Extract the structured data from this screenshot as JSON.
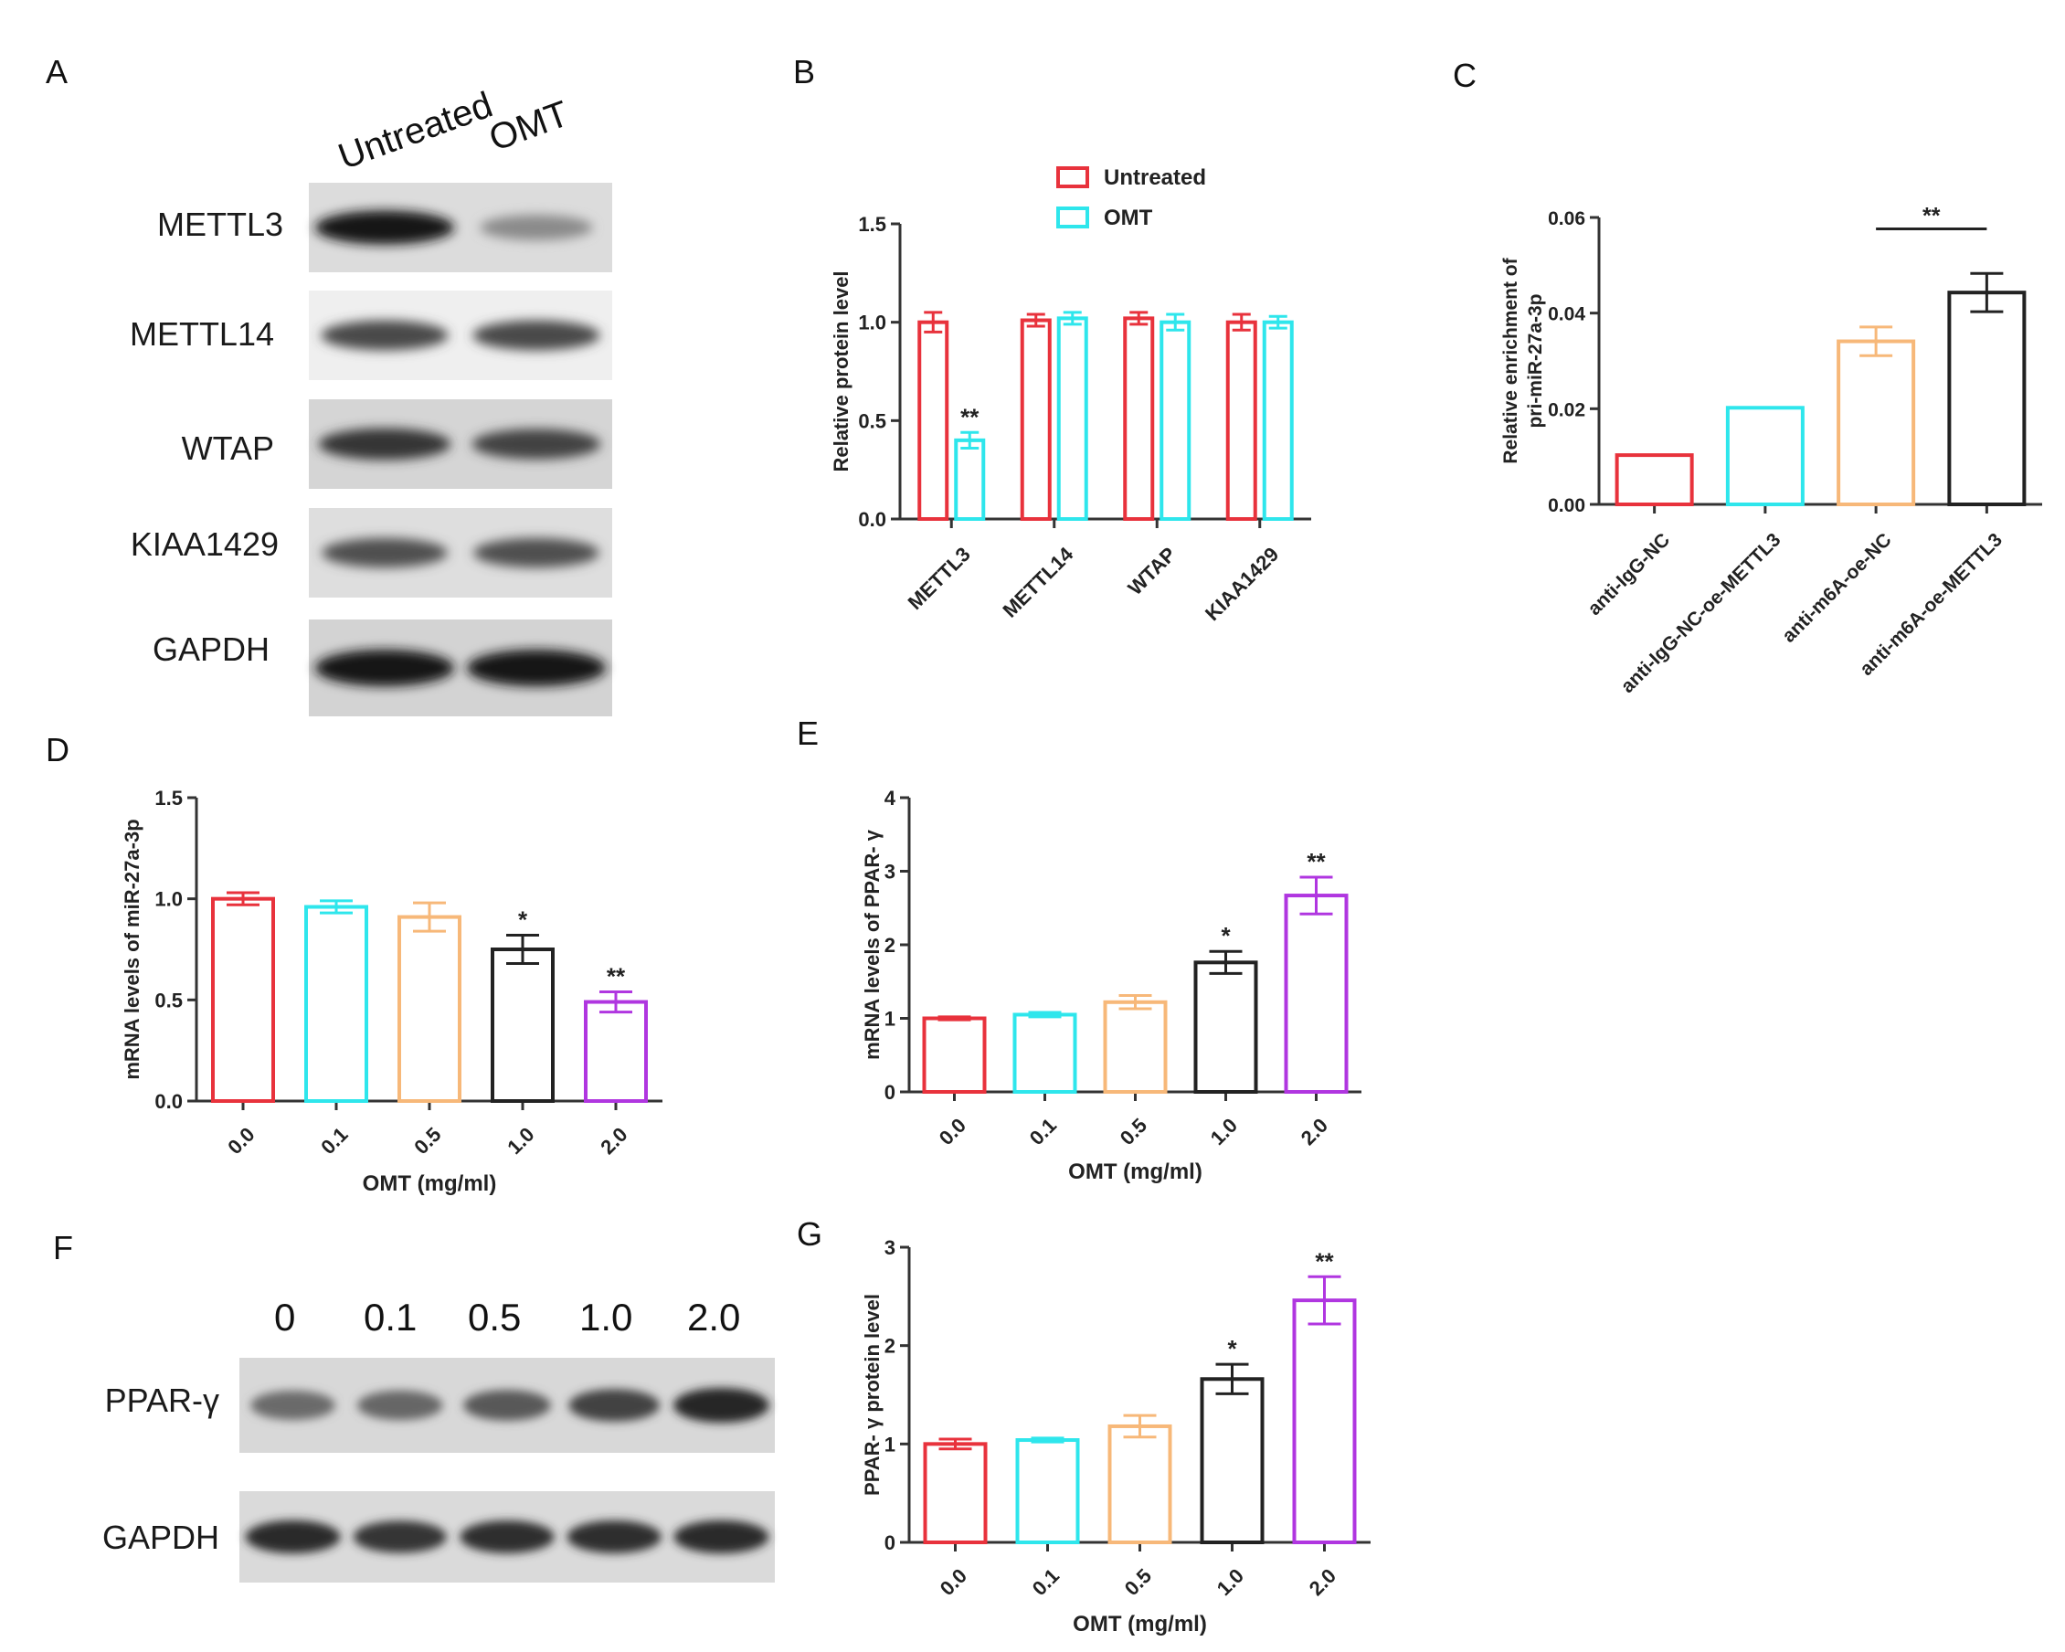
{
  "panels": [
    "A",
    "B",
    "C",
    "D",
    "E",
    "F",
    "G"
  ],
  "blot_a": {
    "lanes": [
      "Untreated",
      "OMT"
    ],
    "proteins": [
      "METTL3",
      "METTL14",
      "WTAP",
      "KIAA1429",
      "GAPDH"
    ],
    "intensity": [
      [
        1.0,
        0.45
      ],
      [
        0.75,
        0.75
      ],
      [
        0.85,
        0.78
      ],
      [
        0.72,
        0.72
      ],
      [
        1.0,
        1.0
      ]
    ]
  },
  "blot_f": {
    "lanes": [
      "0",
      "0.1",
      "0.5",
      "1.0",
      "2.0"
    ],
    "proteins": [
      "PPAR-γ",
      "GAPDH"
    ],
    "intensity": [
      [
        0.6,
        0.62,
        0.68,
        0.78,
        0.92
      ],
      [
        0.9,
        0.85,
        0.88,
        0.88,
        0.9
      ]
    ]
  },
  "colors": {
    "red": "#e8323c",
    "cyan": "#2ee6ec",
    "orange": "#f7b879",
    "black": "#222222",
    "purple": "#b036e0"
  },
  "chart_data": [
    {
      "panel": "B",
      "type": "bar",
      "categories": [
        "METTL3",
        "METTL14",
        "WTAP",
        "KIAA1429"
      ],
      "series": [
        {
          "name": "Untreated",
          "values": [
            1.0,
            1.01,
            1.02,
            1.0
          ],
          "errors": [
            0.05,
            0.03,
            0.03,
            0.04
          ],
          "color": "#e8323c"
        },
        {
          "name": "OMT",
          "values": [
            0.4,
            1.02,
            1.0,
            1.0
          ],
          "errors": [
            0.04,
            0.03,
            0.04,
            0.03
          ],
          "color": "#2ee6ec"
        }
      ],
      "annotations": [
        {
          "category": 0,
          "series": 1,
          "text": "**"
        }
      ],
      "ylabel": "Relative protein level",
      "ylim": [
        0,
        1.5
      ],
      "yticks": [
        "0.0",
        "0.5",
        "1.0",
        "1.5"
      ],
      "legend": "top",
      "grid": false
    },
    {
      "panel": "C",
      "type": "bar",
      "categories": [
        "anti-IgG-NC",
        "anti-IgG-NC-oe-METTL3",
        "anti-m6A-oe-NC",
        "anti-m6A-oe-METTL3"
      ],
      "values": [
        0.0103,
        0.0202,
        0.0341,
        0.0443
      ],
      "errors": [
        0,
        0,
        0.003,
        0.004
      ],
      "colors": [
        "#e8323c",
        "#2ee6ec",
        "#f7b879",
        "#222222"
      ],
      "annotations": [
        {
          "from": 2,
          "to": 3,
          "text": "**"
        }
      ],
      "ylabel": [
        "Relative enrichment of",
        "pri-miR-27a-3p"
      ],
      "ylim": [
        0,
        0.06
      ],
      "yticks": [
        "0.00",
        "0.02",
        "0.04",
        "0.06"
      ],
      "grid": false
    },
    {
      "panel": "D",
      "type": "bar",
      "categories": [
        "0.0",
        "0.1",
        "0.5",
        "1.0",
        "2.0"
      ],
      "values": [
        1.0,
        0.96,
        0.91,
        0.75,
        0.49
      ],
      "errors": [
        0.03,
        0.03,
        0.07,
        0.07,
        0.05
      ],
      "colors": [
        "#e8323c",
        "#2ee6ec",
        "#f7b879",
        "#222222",
        "#b036e0"
      ],
      "annotations": [
        {
          "category": 3,
          "text": "*"
        },
        {
          "category": 4,
          "text": "**"
        }
      ],
      "xlabel": "OMT (mg/ml)",
      "ylabel": "mRNA levels of miR-27a-3p",
      "ylim": [
        0,
        1.5
      ],
      "yticks": [
        "0.0",
        "0.5",
        "1.0",
        "1.5"
      ],
      "grid": false
    },
    {
      "panel": "E",
      "type": "bar",
      "categories": [
        "0.0",
        "0.1",
        "0.5",
        "1.0",
        "2.0"
      ],
      "values": [
        1.0,
        1.05,
        1.22,
        1.76,
        2.67
      ],
      "errors": [
        0.02,
        0.03,
        0.09,
        0.15,
        0.25
      ],
      "colors": [
        "#e8323c",
        "#2ee6ec",
        "#f7b879",
        "#222222",
        "#b036e0"
      ],
      "annotations": [
        {
          "category": 3,
          "text": "*"
        },
        {
          "category": 4,
          "text": "**"
        }
      ],
      "xlabel": "OMT (mg/ml)",
      "ylabel": "mRNA levels of PPAR- γ",
      "ylim": [
        0,
        4
      ],
      "yticks": [
        "0",
        "1",
        "2",
        "3",
        "4"
      ],
      "grid": false
    },
    {
      "panel": "G",
      "type": "bar",
      "categories": [
        "0.0",
        "0.1",
        "0.5",
        "1.0",
        "2.0"
      ],
      "values": [
        1.0,
        1.04,
        1.18,
        1.66,
        2.46
      ],
      "errors": [
        0.05,
        0.02,
        0.11,
        0.15,
        0.24
      ],
      "colors": [
        "#e8323c",
        "#2ee6ec",
        "#f7b879",
        "#222222",
        "#b036e0"
      ],
      "annotations": [
        {
          "category": 3,
          "text": "*"
        },
        {
          "category": 4,
          "text": "**"
        }
      ],
      "xlabel": "OMT (mg/ml)",
      "ylabel": "PPAR- γ protein level",
      "ylim": [
        0,
        3
      ],
      "yticks": [
        "0",
        "1",
        "2",
        "3"
      ],
      "grid": false
    }
  ]
}
